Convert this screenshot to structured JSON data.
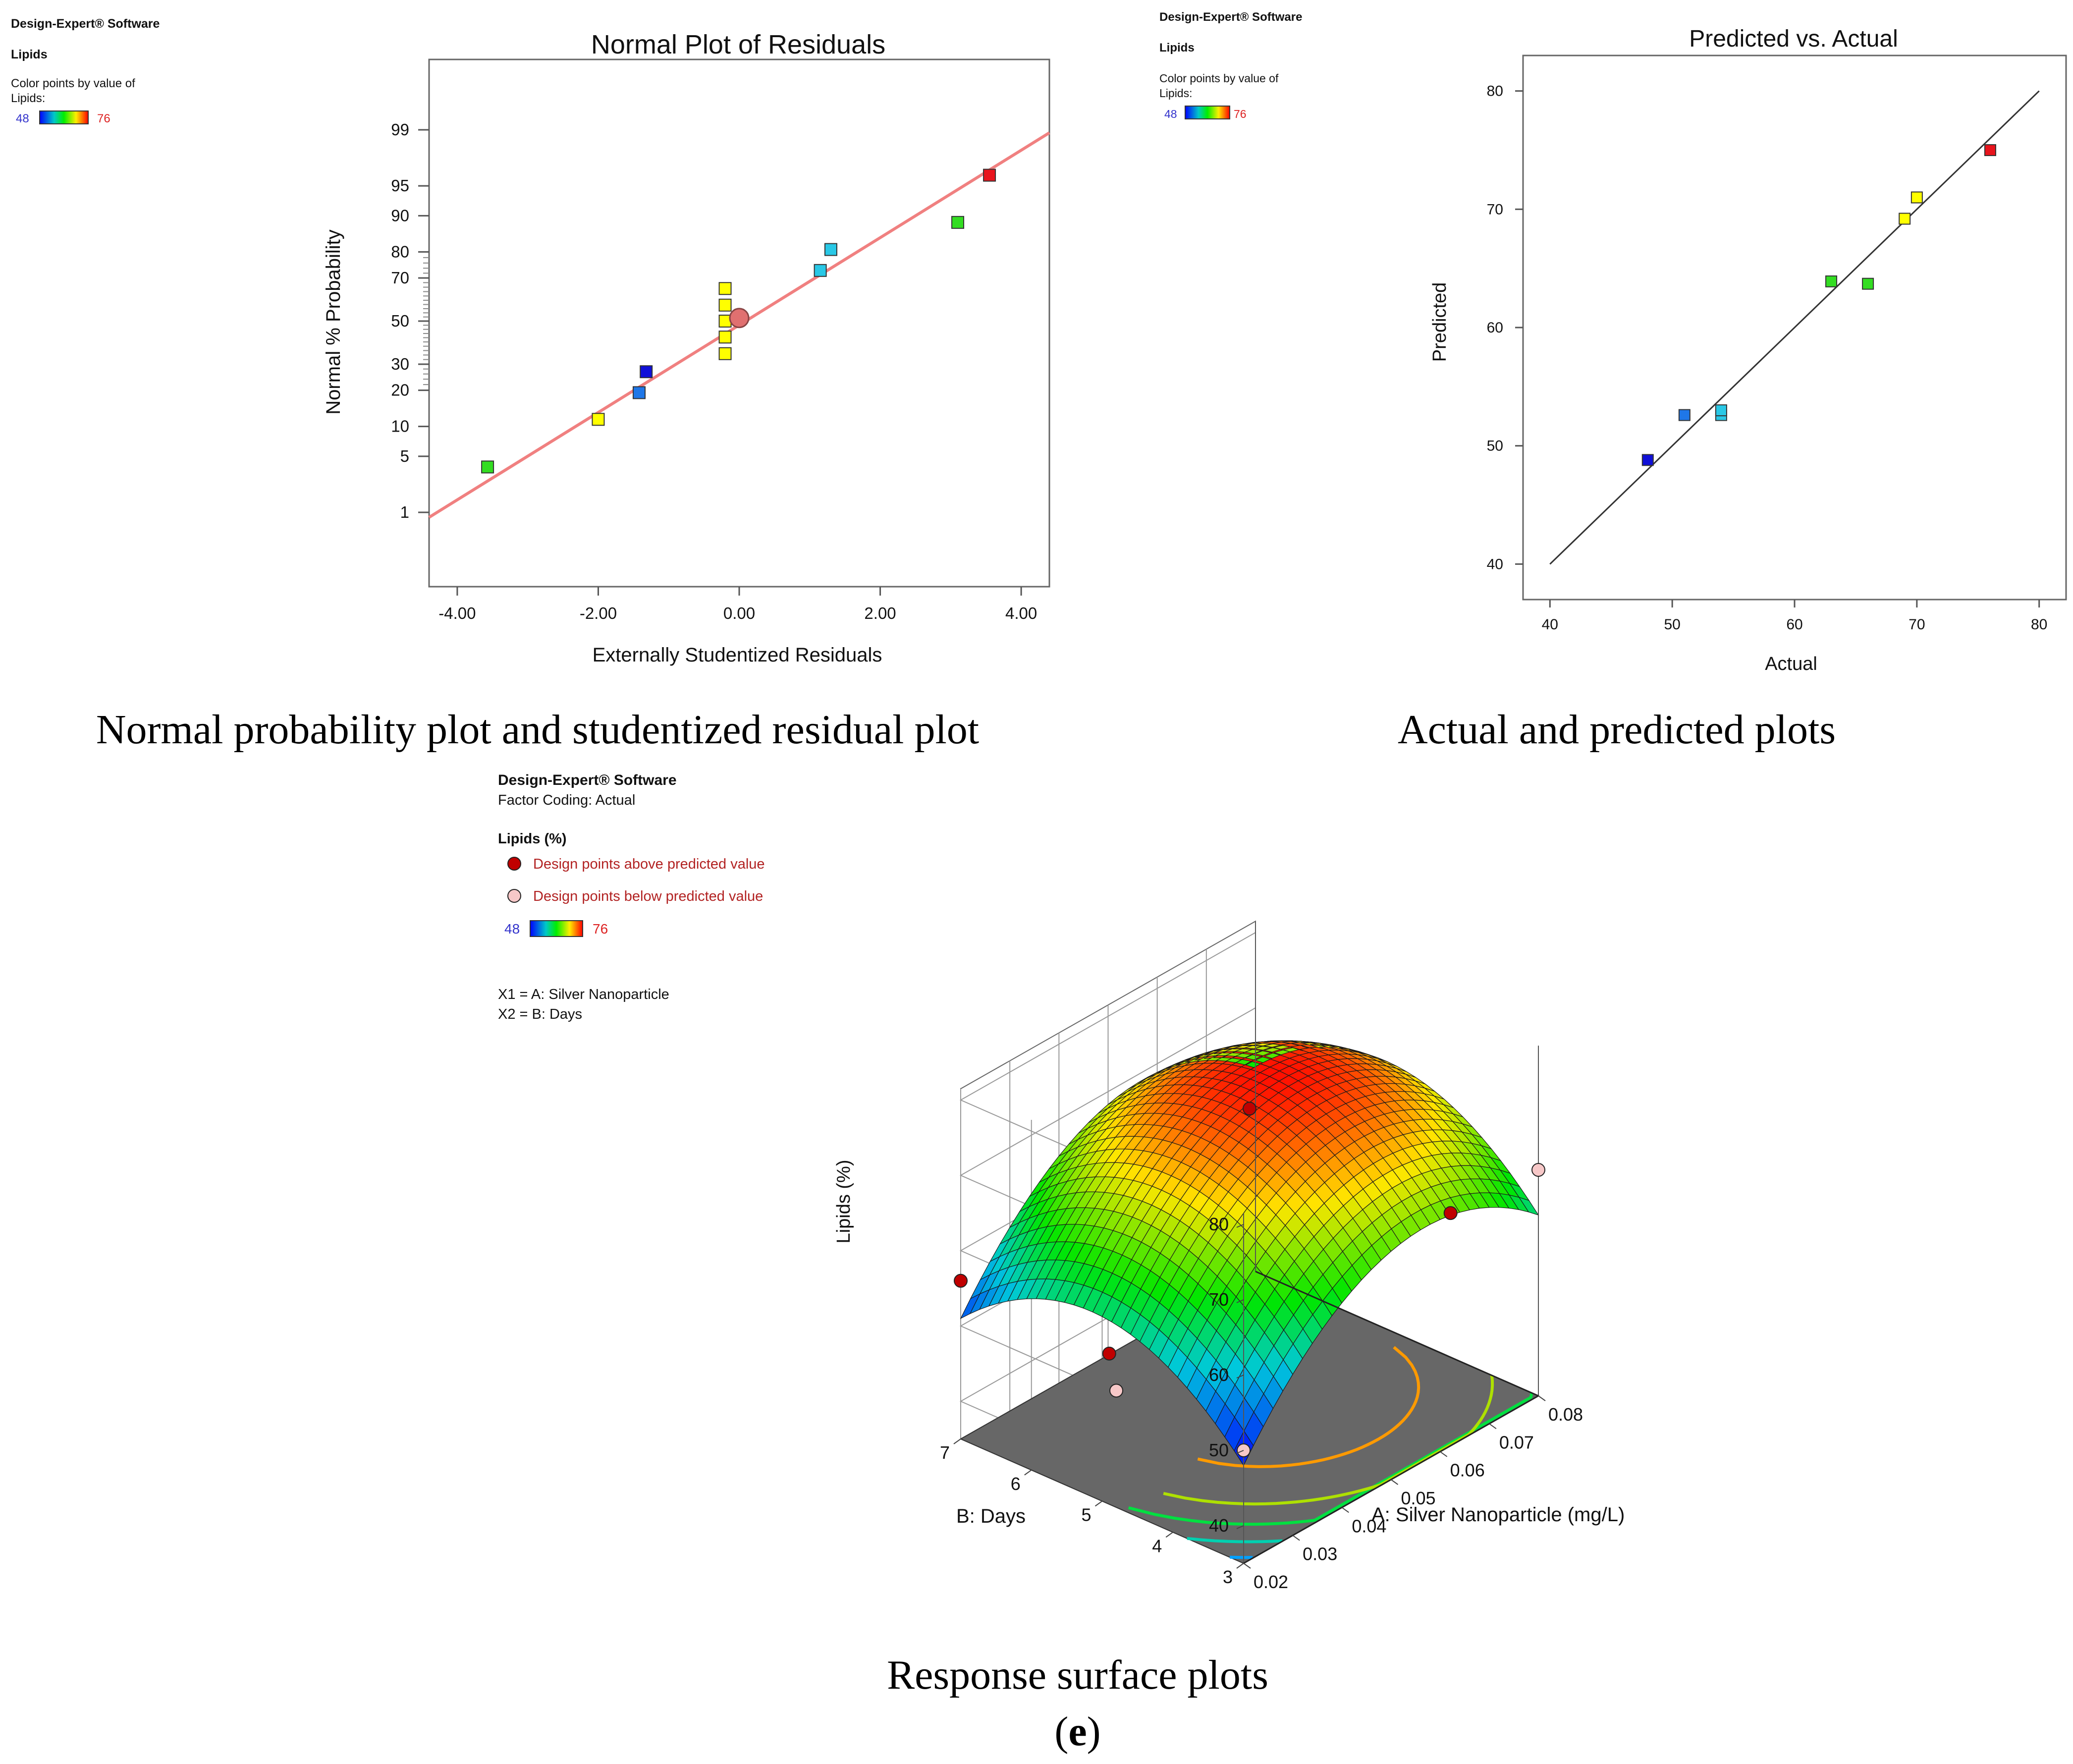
{
  "colors": {
    "red": "#e8141c",
    "orange": "#ff9a00",
    "yellow": "#ffff00",
    "lime": "#33dd22",
    "cyan": "#29c8e6",
    "midblue": "#1f77e8",
    "blue": "#1010d8",
    "fitline_pink": "#f08080",
    "axis": "#555555",
    "legend_low_label": "#3333cc",
    "legend_high_label": "#dd2222",
    "dark_red_text": "#b22222"
  },
  "captions": {
    "panel1": "Normal probability plot and studentized residual plot",
    "panel2": "Actual and predicted plots",
    "panel3": "Response surface plots",
    "panel_letter_open": "(",
    "panel_letter": "e",
    "panel_letter_close": ")"
  },
  "legend1": {
    "software": "Design-Expert® Software",
    "response": "Lipids",
    "color_line1": "Color points by value of",
    "color_line2": "Lipids:",
    "min": "48",
    "max": "76"
  },
  "legend2": {
    "software": "Design-Expert® Software",
    "response": "Lipids",
    "color_line1": "Color points by value of",
    "color_line2": "Lipids:",
    "min": "48",
    "max": "76"
  },
  "legend3": {
    "software": "Design-Expert® Software",
    "coding": "Factor Coding: Actual",
    "response": "Lipids (%)",
    "above": "Design points above predicted value",
    "below": "Design points below predicted value",
    "min": "48",
    "max": "76",
    "x1": "X1 = A: Silver Nanoparticle",
    "x2": "X2 = B: Days"
  },
  "chart_data": [
    {
      "type": "scatter",
      "title": "Normal Plot of Residuals",
      "xlabel": "Externally Studentized Residuals",
      "ylabel": "Normal % Probability",
      "xlim": [
        -4.4,
        4.4
      ],
      "xticks": [
        -4,
        -2,
        0,
        2,
        4
      ],
      "xtick_labels": [
        "-4.00",
        "-2.00",
        "0.00",
        "2.00",
        "4.00"
      ],
      "yscale": "normal-probability",
      "yticks": [
        1,
        5,
        10,
        20,
        30,
        50,
        70,
        80,
        90,
        95,
        99
      ],
      "ytick_labels": [
        "1",
        "5",
        "10",
        "20",
        "30",
        "50",
        "70",
        "80",
        "90",
        "95",
        "99"
      ],
      "fit_line": {
        "x": [
          -4.4,
          4.4
        ],
        "y": [
          0.85,
          98.9
        ]
      },
      "points": [
        {
          "x": -3.57,
          "y": 3.8,
          "color": "#33dd22"
        },
        {
          "x": -2.0,
          "y": 11.6,
          "color": "#ffff00"
        },
        {
          "x": -1.42,
          "y": 19.2,
          "color": "#1f77e8"
        },
        {
          "x": -1.32,
          "y": 26.9,
          "color": "#1010d8"
        },
        {
          "x": -0.2,
          "y": 34.6,
          "color": "#ffff00"
        },
        {
          "x": -0.2,
          "y": 42.3,
          "color": "#ffff00"
        },
        {
          "x": -0.2,
          "y": 50.0,
          "color": "#ffff00"
        },
        {
          "x": -0.2,
          "y": 57.7,
          "color": "#ffff00"
        },
        {
          "x": -0.2,
          "y": 65.4,
          "color": "#ffff00"
        },
        {
          "x": 1.15,
          "y": 73.1,
          "color": "#29c8e6"
        },
        {
          "x": 1.3,
          "y": 80.8,
          "color": "#29c8e6"
        },
        {
          "x": 3.1,
          "y": 88.5,
          "color": "#33dd22"
        },
        {
          "x": 3.55,
          "y": 96.2,
          "color": "#e8141c"
        }
      ],
      "highlight_point": {
        "x": 0.0,
        "y": 51.5
      }
    },
    {
      "type": "scatter",
      "title": "Predicted vs. Actual",
      "xlabel": "Actual",
      "ylabel": "Predicted",
      "xlim": [
        37.8,
        82.2
      ],
      "ylim": [
        37,
        83
      ],
      "xticks": [
        40,
        50,
        60,
        70,
        80
      ],
      "xtick_labels": [
        "40",
        "50",
        "60",
        "70",
        "80"
      ],
      "yticks": [
        40,
        50,
        60,
        70,
        80
      ],
      "ytick_labels": [
        "40",
        "50",
        "60",
        "70",
        "80"
      ],
      "diagonal": {
        "x": [
          40,
          80
        ],
        "y": [
          40,
          80
        ]
      },
      "points": [
        {
          "x": 48,
          "y": 48.8,
          "color": "#1010d8"
        },
        {
          "x": 51,
          "y": 52.6,
          "color": "#1f77e8"
        },
        {
          "x": 54,
          "y": 52.6,
          "color": "#29c8e6"
        },
        {
          "x": 54,
          "y": 53.0,
          "color": "#29c8e6"
        },
        {
          "x": 63,
          "y": 63.9,
          "color": "#33dd22"
        },
        {
          "x": 66,
          "y": 63.7,
          "color": "#33dd22"
        },
        {
          "x": 69,
          "y": 69.2,
          "color": "#ffff00"
        },
        {
          "x": 70,
          "y": 71.0,
          "color": "#ffff00"
        },
        {
          "x": 76,
          "y": 75.0,
          "color": "#e8141c"
        }
      ]
    },
    {
      "type": "surface3d",
      "zlabel": "Lipids (%)",
      "alabel": "A: Silver Nanoparticle (mg/L)",
      "blabel": "B: Days",
      "a_range": [
        0.02,
        0.08
      ],
      "b_range": [
        3,
        7
      ],
      "z_range": [
        35,
        80
      ],
      "zticks": [
        40,
        50,
        60,
        70,
        80
      ],
      "zmax_shown": 80,
      "aticks": [
        0.02,
        0.03,
        0.04,
        0.05,
        0.06,
        0.07,
        0.08
      ],
      "atick_labels": [
        "0.02",
        "0.03",
        "0.04",
        "0.05",
        "0.06",
        "0.07",
        "0.08"
      ],
      "bticks": [
        3,
        4,
        5,
        6,
        7
      ],
      "btick_labels": [
        "3",
        "4",
        "5",
        "6",
        "7"
      ],
      "ztick_labels": [
        "40",
        "50",
        "60",
        "70",
        "80"
      ],
      "model": {
        "center": 76.8,
        "a_lin": 5.5,
        "b_lin": 1.5,
        "a_quad": -11.8,
        "b_quad": -10.0
      },
      "design_points": [
        {
          "a": 0.05,
          "b": 5,
          "z": 76,
          "type": "above"
        },
        {
          "a": 0.02,
          "b": 7,
          "z": 56,
          "type": "above"
        },
        {
          "a": 0.02,
          "b": 3,
          "z": 50,
          "type": "below"
        },
        {
          "a": 0.08,
          "b": 3,
          "z": 65,
          "type": "below"
        },
        {
          "a": 0.065,
          "b": 3.2,
          "z": 64,
          "type": "above"
        },
        {
          "a": 0.02,
          "b": 4.9,
          "z": 55,
          "type": "above"
        },
        {
          "a": 0.02,
          "b": 4.8,
          "z": 50.5,
          "type": "below"
        }
      ]
    }
  ]
}
